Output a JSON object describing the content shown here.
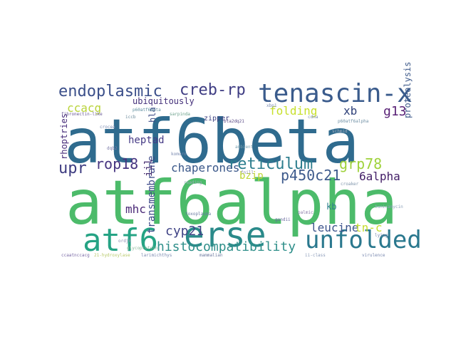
{
  "word_cloud": {
    "words": [
      {
        "text": "atf6beta",
        "color": "#2f6b8e"
      },
      {
        "text": "atf6alpha",
        "color": "#4cbb6a"
      },
      {
        "text": "erse",
        "color": "#2a8a8a"
      },
      {
        "text": "atf6",
        "color": "#25a384"
      },
      {
        "text": "tenascin-x",
        "color": "#3a5b8c"
      },
      {
        "text": "unfolded",
        "color": "#2a788e"
      },
      {
        "text": "endoplasmic",
        "color": "#3b4f8a"
      },
      {
        "text": "creb-rp",
        "color": "#3f3d83"
      },
      {
        "text": "reticulum",
        "color": "#2c7d8d"
      },
      {
        "text": "histocompatibility",
        "color": "#2f8f8a"
      },
      {
        "text": "grp78",
        "color": "#9fd23c"
      },
      {
        "text": "p450c21",
        "color": "#3d5a8c"
      },
      {
        "text": "chaperones",
        "color": "#3a5789"
      },
      {
        "text": "upr",
        "color": "#3e3c81"
      },
      {
        "text": "rop18",
        "color": "#463480"
      },
      {
        "text": "cyp21",
        "color": "#404486"
      },
      {
        "text": "leucine",
        "color": "#3b538b"
      },
      {
        "text": "mhc",
        "color": "#4b2a78"
      },
      {
        "text": "ccacg",
        "color": "#b9d33a"
      },
      {
        "text": "folding",
        "color": "#c7e02c"
      },
      {
        "text": "xb",
        "color": "#2d3f78"
      },
      {
        "text": "g13",
        "color": "#5a2377"
      },
      {
        "text": "6alpha",
        "color": "#421d66"
      },
      {
        "text": "tn-c",
        "color": "#c6dd2f"
      },
      {
        "text": "ubiquitously",
        "color": "#44307a"
      },
      {
        "text": "bzip",
        "color": "#bfd532"
      },
      {
        "text": "heptad",
        "color": "#453a85"
      },
      {
        "text": "proteolysis",
        "color": "#3f5b8b"
      },
      {
        "text": "transmembrane",
        "color": "#3d4989"
      },
      {
        "text": "rhoptries",
        "color": "#472c7a"
      },
      {
        "text": "iil",
        "color": "#432a6d"
      },
      {
        "text": "hla",
        "color": "#3f4c87"
      },
      {
        "text": "kb",
        "color": "#2e7f8c"
      },
      {
        "text": "zipper",
        "color": "#3c3f80"
      }
    ],
    "small_words": [
      {
        "text": "p60atf6beta",
        "color": "#5e8e9e"
      },
      {
        "text": "p60atf6alpha",
        "color": "#6f90a5"
      },
      {
        "text": "bta2dq21",
        "color": "#5a4a86"
      },
      {
        "text": "fibronectin-like",
        "color": "#6a5a96"
      },
      {
        "text": "ccaatnccacg",
        "color": "#7a6aa6"
      },
      {
        "text": "21-hydroxylase",
        "color": "#b8c96a"
      },
      {
        "text": "larimichthys",
        "color": "#7a8ab0"
      },
      {
        "text": "sarpinda",
        "color": "#6aa08a"
      },
      {
        "text": "ambient",
        "color": "#7aa0b0"
      },
      {
        "text": "glycoprotein",
        "color": "#8ab89a"
      },
      {
        "text": "mammalian",
        "color": "#6e7ba0"
      },
      {
        "text": "virulence",
        "color": "#7a8ab0"
      },
      {
        "text": "palmic",
        "color": "#8a7aa8"
      },
      {
        "text": "croaker",
        "color": "#7d93aa"
      },
      {
        "text": "gondii",
        "color": "#6a6aa0"
      },
      {
        "text": "toxoplasma",
        "color": "#6a7aa0"
      },
      {
        "text": "tunicamycin",
        "color": "#8aa0b8"
      },
      {
        "text": "crocea",
        "color": "#7a8ab0"
      },
      {
        "text": "fnill",
        "color": "#8a8ab0"
      },
      {
        "text": "reading",
        "color": "#9aaab8"
      },
      {
        "text": "ii-class",
        "color": "#8a9ab8"
      },
      {
        "text": "lying",
        "color": "#7a8ab0"
      },
      {
        "text": "komuro",
        "color": "#7a8ab0"
      },
      {
        "text": "xbp1",
        "color": "#7a8ab0"
      },
      {
        "text": "iccb",
        "color": "#6a8a9a"
      },
      {
        "text": "dqb2",
        "color": "#7a7aa8"
      },
      {
        "text": "cdna",
        "color": "#7a8ab0"
      },
      {
        "text": "schmid",
        "color": "#aab0c0"
      },
      {
        "text": "ordjk",
        "color": "#8a8ab0"
      }
    ]
  }
}
